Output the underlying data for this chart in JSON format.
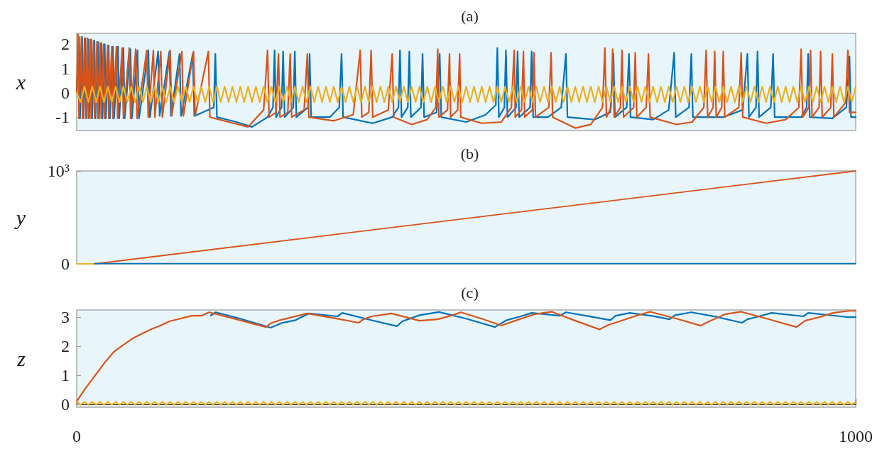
{
  "chart_data": [
    {
      "type": "line",
      "title": "(a)",
      "ylabel": "x",
      "xlim": [
        0,
        1000
      ],
      "ylim": [
        -1.55,
        2.45
      ],
      "yticks": [
        -1,
        0,
        1,
        2
      ],
      "tick_labels": "y",
      "marker": "none",
      "series": [
        {
          "color": "#0072bd",
          "x": [
            0,
            3,
            4.3,
            7,
            8.4,
            11,
            12.3,
            14.7,
            16,
            18.5,
            19.8,
            22.8,
            24.2,
            27.3,
            28.7,
            31.5,
            33,
            36,
            37.5,
            41,
            42.6,
            46.5,
            48,
            53,
            54.6,
            60,
            61.6,
            69,
            70.8,
            78,
            80,
            92,
            94,
            104.5,
            106.5,
            119,
            121,
            132,
            134,
            149,
            151,
            176,
            178,
            180,
            205,
            225,
            245,
            252,
            254,
            256,
            263,
            265,
            267,
            278,
            280,
            282,
            297,
            299,
            301,
            325,
            337,
            340,
            342,
            380,
            405,
            413,
            415,
            417,
            425,
            427,
            429,
            442,
            444,
            446,
            462,
            466,
            468,
            500,
            525,
            538,
            540,
            542,
            549,
            551,
            553,
            564,
            566,
            568,
            582,
            584,
            586,
            605,
            622,
            628,
            630,
            665,
            685,
            689,
            691,
            706,
            709,
            711,
            740,
            760,
            767,
            769,
            786,
            789,
            791,
            830,
            855,
            861,
            863,
            872,
            874,
            876,
            891,
            894,
            896,
            930,
            937,
            939,
            941,
            970,
            988,
            992,
            994,
            1000
          ],
          "values": [
            0,
            2.3,
            -1.05,
            2.3,
            -1.05,
            2.25,
            -1.05,
            2.2,
            -1.05,
            2.2,
            -1.05,
            2.15,
            -1.05,
            2.1,
            -1.05,
            2.05,
            -1.05,
            2.0,
            -1.05,
            1.95,
            -1.05,
            1.9,
            -1.05,
            1.9,
            -1.05,
            1.85,
            -1.05,
            1.8,
            -1.05,
            1.75,
            -1.05,
            1.75,
            -1.0,
            1.7,
            -0.95,
            1.7,
            -0.95,
            1.6,
            -0.95,
            1.6,
            -0.95,
            -0.6,
            1.6,
            -1.0,
            -1.2,
            -1.4,
            -1.0,
            -0.6,
            1.75,
            -1.0,
            -0.6,
            1.7,
            -1.0,
            -0.6,
            1.7,
            -1.0,
            -0.6,
            1.6,
            -1.0,
            -1.0,
            -0.6,
            1.6,
            -1.0,
            -1.25,
            -1.0,
            -0.6,
            1.75,
            -1.0,
            -0.6,
            1.7,
            -1.0,
            -0.6,
            1.6,
            -1.0,
            -0.8,
            1.6,
            -1.0,
            -1.2,
            -0.9,
            -0.5,
            1.85,
            -1.0,
            -0.6,
            1.75,
            -1.0,
            -0.6,
            1.7,
            -1.0,
            -0.6,
            1.7,
            -1.0,
            -1.0,
            -0.6,
            1.6,
            -1.0,
            -1.1,
            -0.8,
            1.6,
            -1.0,
            -0.6,
            1.6,
            -1.0,
            -1.1,
            -0.7,
            1.65,
            -1.0,
            -0.6,
            1.6,
            -1.0,
            -1.0,
            -0.7,
            1.6,
            -1.0,
            -0.6,
            1.7,
            -1.0,
            -0.6,
            1.6,
            -1.0,
            -1.0,
            -0.6,
            1.6,
            -1.0,
            -1.05,
            -0.6,
            1.5,
            -1.0,
            -1.0
          ]
        },
        {
          "color": "#d95319",
          "x": [
            0,
            1.8,
            3,
            6.1,
            7.5,
            10.1,
            11.5,
            13.7,
            15,
            17.3,
            18.6,
            21.6,
            23,
            26,
            27.4,
            30,
            31.5,
            34.3,
            35.8,
            39.7,
            41.2,
            45,
            46.6,
            51,
            52.6,
            58.4,
            60,
            67.5,
            69.2,
            75.7,
            77.5,
            90,
            91.8,
            98.5,
            100.3,
            108,
            110,
            120,
            122,
            135,
            137,
            150,
            152,
            169,
            171,
            195,
            220,
            240,
            245,
            247,
            256,
            259,
            261,
            271,
            274,
            276,
            292,
            296,
            298,
            330,
            355,
            364,
            366,
            375,
            378,
            380,
            400,
            405,
            407,
            430,
            450,
            461,
            463.5,
            465,
            476,
            478.6,
            480,
            489,
            491.6,
            493,
            520,
            545,
            558,
            561.6,
            563,
            571,
            573.5,
            575,
            585,
            587,
            589,
            606,
            609,
            611,
            640,
            660,
            675,
            678,
            680,
            686,
            688,
            690,
            698,
            700,
            702,
            715,
            717,
            719,
            731,
            734,
            736,
            770,
            790,
            805,
            808,
            810,
            817,
            819,
            821,
            828,
            830,
            832,
            850,
            853,
            855,
            885,
            910,
            927,
            930,
            932,
            940,
            942,
            944,
            953,
            955,
            957,
            968,
            970,
            972,
            987,
            990,
            992,
            1000
          ],
          "values": [
            0,
            2.4,
            -1.05,
            2.3,
            -1.05,
            2.25,
            -1.05,
            2.25,
            -1.05,
            2.2,
            -1.05,
            2.15,
            -1.05,
            2.1,
            -1.05,
            2.05,
            -1.05,
            2.0,
            -1.05,
            1.95,
            -1.05,
            1.9,
            -1.05,
            1.9,
            -1.05,
            1.85,
            -1.05,
            1.85,
            -1.05,
            1.8,
            -1.05,
            1.75,
            -1.0,
            1.75,
            -1.0,
            1.7,
            -1.0,
            1.75,
            -0.95,
            1.7,
            -0.95,
            1.7,
            -0.95,
            1.7,
            -1.0,
            -1.2,
            -1.4,
            -0.7,
            1.75,
            -1.0,
            -0.8,
            1.6,
            -1.0,
            -0.8,
            1.6,
            -1.0,
            -0.7,
            1.6,
            -1.0,
            -1.15,
            -0.9,
            1.75,
            -1.0,
            -0.8,
            1.75,
            -1.0,
            -0.7,
            1.6,
            -1.0,
            -1.3,
            -1.1,
            -0.6,
            1.8,
            -1.0,
            -0.7,
            1.6,
            -1.0,
            -0.7,
            1.6,
            -1.0,
            -1.25,
            -1.2,
            -0.6,
            1.75,
            -1.0,
            -0.7,
            1.7,
            -1.0,
            -0.7,
            1.65,
            -1.0,
            -0.6,
            1.65,
            -1.0,
            -1.45,
            -1.3,
            -0.6,
            1.85,
            -1.0,
            -0.6,
            1.8,
            -1.0,
            -0.6,
            1.75,
            -1.0,
            -0.6,
            1.65,
            -1.0,
            -0.6,
            1.6,
            -1.0,
            -1.3,
            -1.2,
            -0.6,
            1.75,
            -1.0,
            -0.6,
            1.7,
            -1.0,
            -0.6,
            1.7,
            -1.0,
            -0.6,
            1.65,
            -1.0,
            -1.25,
            -1.1,
            -0.6,
            1.8,
            -1.0,
            -0.6,
            1.75,
            -1.0,
            -0.6,
            1.7,
            -1.0,
            -0.6,
            1.6,
            -1.0,
            -0.4,
            1.75,
            -0.8,
            -0.8
          ]
        },
        {
          "color": "#edb120",
          "x": [
            0,
            5,
            10,
            15,
            20,
            25,
            30,
            35,
            40,
            45,
            50,
            55,
            60,
            65,
            70,
            75,
            80,
            85,
            90,
            95,
            100,
            105,
            110,
            115,
            120,
            125,
            130,
            135,
            140,
            145,
            150,
            155,
            160,
            165,
            170,
            175,
            180,
            185,
            190,
            195,
            200,
            205,
            210,
            215,
            220,
            225,
            230,
            235,
            240,
            245,
            250,
            255,
            260,
            265,
            270,
            275,
            280,
            285,
            290,
            295,
            300,
            305,
            310,
            315,
            320,
            325,
            330,
            335,
            340,
            345,
            350,
            355,
            360,
            365,
            370,
            375,
            380,
            385,
            390,
            395,
            400,
            405,
            410,
            415,
            420,
            425,
            430,
            435,
            440,
            445,
            450,
            455,
            460,
            465,
            470,
            475,
            480,
            485,
            490,
            495,
            500,
            505,
            510,
            515,
            520,
            525,
            530,
            535,
            540,
            545,
            550,
            555,
            560,
            565,
            570,
            575,
            580,
            585,
            590,
            595,
            600,
            605,
            610,
            615,
            620,
            625,
            630,
            635,
            640,
            645,
            650,
            655,
            660,
            665,
            670,
            675,
            680,
            685,
            690,
            695,
            700,
            705,
            710,
            715,
            720,
            725,
            730,
            735,
            740,
            745,
            750,
            755,
            760,
            765,
            770,
            775,
            780,
            785,
            790,
            795,
            800,
            805,
            810,
            815,
            820,
            825,
            830,
            835,
            840,
            845,
            850,
            855,
            860,
            865,
            870,
            875,
            880,
            885,
            890,
            895,
            900,
            905,
            910,
            915,
            920,
            925,
            930,
            935,
            940,
            945,
            950,
            955,
            960,
            965,
            970,
            975,
            980,
            985,
            990,
            995,
            1000
          ],
          "values": [
            0,
            -0.38,
            0.26,
            -0.38,
            0.26,
            -0.38,
            0.26,
            -0.38,
            0.26,
            -0.38,
            0.26,
            -0.38,
            0.26,
            -0.38,
            0.26,
            -0.38,
            0.26,
            -0.38,
            0.26,
            -0.38,
            0.26,
            -0.38,
            0.26,
            -0.38,
            0.26,
            -0.38,
            0.26,
            -0.38,
            0.26,
            -0.38,
            0.26,
            -0.38,
            0.26,
            -0.38,
            0.26,
            -0.38,
            0.26,
            -0.38,
            0.26,
            -0.38,
            0.26,
            -0.38,
            0.26,
            -0.38,
            0.26,
            -0.38,
            0.26,
            -0.38,
            0.26,
            -0.38,
            0.26,
            -0.38,
            0.26,
            -0.38,
            0.26,
            -0.38,
            0.26,
            -0.38,
            0.26,
            -0.38,
            0.26,
            -0.38,
            0.26,
            -0.38,
            0.26,
            -0.38,
            0.26,
            -0.38,
            0.26,
            -0.38,
            0.26,
            -0.38,
            0.26,
            -0.38,
            0.26,
            -0.38,
            0.26,
            -0.38,
            0.26,
            -0.38,
            0.26,
            -0.38,
            0.26,
            -0.38,
            0.26,
            -0.38,
            0.26,
            -0.38,
            0.26,
            -0.38,
            0.26,
            -0.38,
            0.26,
            -0.38,
            0.26,
            -0.38,
            0.26,
            -0.38,
            0.26,
            -0.38,
            0.26,
            -0.38,
            0.26,
            -0.38,
            0.26,
            -0.38,
            0.26,
            -0.38,
            0.26,
            -0.38,
            0.26,
            -0.38,
            0.26,
            -0.38,
            0.26,
            -0.38,
            0.26,
            -0.38,
            0.26,
            -0.38,
            0.26,
            -0.38,
            0.26,
            -0.38,
            0.26,
            -0.38,
            0.26,
            -0.38,
            0.26,
            -0.38,
            0.26,
            -0.38,
            0.26,
            -0.38,
            0.26,
            -0.38,
            0.26,
            -0.38,
            0.26,
            -0.38,
            0.26,
            -0.38,
            0.26,
            -0.38,
            0.26,
            -0.38,
            0.26,
            -0.38,
            0.26,
            -0.38,
            0.26,
            -0.38,
            0.26,
            -0.38,
            0.26,
            -0.38,
            0.26,
            -0.38,
            0.26,
            -0.38,
            0.26,
            -0.38,
            0.26,
            -0.38,
            0.26,
            -0.38,
            0.26,
            -0.38,
            0.26,
            -0.38,
            0.26,
            -0.38,
            0.26,
            -0.38,
            0.26,
            -0.38,
            0.26,
            -0.38,
            0.26,
            -0.38,
            0.26,
            -0.38,
            0.26,
            -0.38,
            0.26,
            -0.38,
            0.26,
            -0.38,
            0.26,
            -0.38,
            0.26,
            -0.38,
            0.26,
            -0.38,
            0.26,
            -0.38,
            0.26,
            -0.38,
            0.26,
            -0.38,
            0.26
          ]
        }
      ]
    },
    {
      "type": "line",
      "title": "(b)",
      "ylabel": "y",
      "xlim": [
        0,
        1000
      ],
      "ylim": [
        0,
        1000
      ],
      "yticks": [
        0,
        {
          "value": 1000,
          "label": "10³"
        }
      ],
      "tick_labels": "y",
      "marker": "none",
      "series": [
        {
          "color": "#edb120",
          "x": [
            0,
            23
          ],
          "values": [
            0,
            0
          ]
        },
        {
          "color": "#d95319",
          "x": [
            23,
            1000
          ],
          "values": [
            0,
            1000
          ]
        },
        {
          "color": "#0072bd",
          "x": [
            23,
            1000
          ],
          "values": [
            3,
            3
          ]
        }
      ]
    },
    {
      "type": "line",
      "title": "(c)",
      "ylabel": "z",
      "xlim": [
        0,
        1000
      ],
      "ylim": [
        -0.1,
        3.25
      ],
      "yticks": [
        0,
        1,
        2,
        3
      ],
      "xticks": [
        0,
        1000
      ],
      "marker": "none",
      "series": [
        {
          "color": "#0072bd",
          "x": [
            172,
            178.5,
            210,
            249,
            263,
            281,
            298,
            335,
            341,
            375,
            411,
            418,
            440,
            465,
            500,
            537,
            552,
            570,
            584,
            620,
            628,
            660,
            685,
            692,
            710,
            740,
            761,
            768,
            789,
            820,
            854,
            861,
            876,
            892,
            933,
            939,
            970,
            991,
            1000
          ],
          "values": [
            3.06,
            3.17,
            2.95,
            2.64,
            2.8,
            2.9,
            3.13,
            3.03,
            3.15,
            2.92,
            2.69,
            2.86,
            3.07,
            3.18,
            2.95,
            2.66,
            2.9,
            3.03,
            3.15,
            3.05,
            3.17,
            3.02,
            2.9,
            3.05,
            3.15,
            3.04,
            2.93,
            3.07,
            3.17,
            3.02,
            2.81,
            2.93,
            3.03,
            3.15,
            3.03,
            3.15,
            3.06,
            3.0,
            3.0
          ]
        },
        {
          "color": "#d95319",
          "x": [
            0,
            10,
            21.6,
            35,
            47,
            60,
            72,
            85,
            97,
            108,
            119,
            133,
            148,
            160,
            170,
            205,
            243,
            249,
            261,
            276,
            296,
            330,
            362,
            368,
            379,
            404,
            440,
            463.5,
            480,
            493,
            520,
            545,
            563,
            574,
            587,
            610,
            640,
            671,
            682,
            697,
            718,
            736,
            770,
            801,
            812,
            832,
            853,
            890,
            924,
            935,
            953,
            971,
            991,
            1000
          ],
          "values": [
            0.1,
            0.5,
            0.92,
            1.4,
            1.79,
            2.05,
            2.27,
            2.45,
            2.6,
            2.72,
            2.86,
            2.95,
            3.05,
            3.05,
            3.17,
            2.93,
            2.66,
            2.79,
            2.9,
            3.0,
            3.13,
            2.97,
            2.81,
            2.93,
            3.03,
            3.13,
            2.88,
            2.93,
            3.05,
            3.17,
            2.95,
            2.71,
            2.88,
            2.98,
            3.1,
            3.19,
            2.88,
            2.58,
            2.73,
            2.86,
            3.05,
            3.19,
            2.95,
            2.71,
            2.86,
            3.1,
            3.19,
            2.92,
            2.66,
            2.88,
            3.0,
            3.15,
            3.22,
            3.22
          ]
        },
        {
          "color": "#edb120",
          "x": [
            0,
            5,
            10,
            15,
            20,
            25,
            30,
            35,
            40,
            45,
            50,
            55,
            60,
            65,
            70,
            75,
            80,
            85,
            90,
            95,
            100,
            105,
            110,
            115,
            120,
            125,
            130,
            135,
            140,
            145,
            150,
            155,
            160,
            165,
            170,
            175,
            180,
            185,
            190,
            195,
            200,
            205,
            210,
            215,
            220,
            225,
            230,
            235,
            240,
            245,
            250,
            255,
            260,
            265,
            270,
            275,
            280,
            285,
            290,
            295,
            300,
            305,
            310,
            315,
            320,
            325,
            330,
            335,
            340,
            345,
            350,
            355,
            360,
            365,
            370,
            375,
            380,
            385,
            390,
            395,
            400,
            405,
            410,
            415,
            420,
            425,
            430,
            435,
            440,
            445,
            450,
            455,
            460,
            465,
            470,
            475,
            480,
            485,
            490,
            495,
            500,
            505,
            510,
            515,
            520,
            525,
            530,
            535,
            540,
            545,
            550,
            555,
            560,
            565,
            570,
            575,
            580,
            585,
            590,
            595,
            600,
            605,
            610,
            615,
            620,
            625,
            630,
            635,
            640,
            645,
            650,
            655,
            660,
            665,
            670,
            675,
            680,
            685,
            690,
            695,
            700,
            705,
            710,
            715,
            720,
            725,
            730,
            735,
            740,
            745,
            750,
            755,
            760,
            765,
            770,
            775,
            780,
            785,
            790,
            795,
            800,
            805,
            810,
            815,
            820,
            825,
            830,
            835,
            840,
            845,
            850,
            855,
            860,
            865,
            870,
            875,
            880,
            885,
            890,
            895,
            900,
            905,
            910,
            915,
            920,
            925,
            930,
            935,
            940,
            945,
            950,
            955,
            960,
            965,
            970,
            975,
            980,
            985,
            990,
            995,
            1000
          ],
          "values": [
            0.1,
            -0.02,
            0.08,
            -0.02,
            0.08,
            -0.02,
            0.08,
            -0.02,
            0.08,
            -0.02,
            0.08,
            -0.02,
            0.08,
            -0.02,
            0.08,
            -0.02,
            0.08,
            -0.02,
            0.08,
            -0.02,
            0.08,
            -0.02,
            0.08,
            -0.02,
            0.08,
            -0.02,
            0.08,
            -0.02,
            0.08,
            -0.02,
            0.08,
            -0.02,
            0.08,
            -0.02,
            0.08,
            -0.02,
            0.08,
            -0.02,
            0.08,
            -0.02,
            0.08,
            -0.02,
            0.08,
            -0.02,
            0.08,
            -0.02,
            0.08,
            -0.02,
            0.08,
            -0.02,
            0.08,
            -0.02,
            0.08,
            -0.02,
            0.08,
            -0.02,
            0.08,
            -0.02,
            0.08,
            -0.02,
            0.08,
            -0.02,
            0.08,
            -0.02,
            0.08,
            -0.02,
            0.08,
            -0.02,
            0.08,
            -0.02,
            0.08,
            -0.02,
            0.08,
            -0.02,
            0.08,
            -0.02,
            0.08,
            -0.02,
            0.08,
            -0.02,
            0.08,
            -0.02,
            0.08,
            -0.02,
            0.08,
            -0.02,
            0.08,
            -0.02,
            0.08,
            -0.02,
            0.08,
            -0.02,
            0.08,
            -0.02,
            0.08,
            -0.02,
            0.08,
            -0.02,
            0.08,
            -0.02,
            0.08,
            -0.02,
            0.08,
            -0.02,
            0.08,
            -0.02,
            0.08,
            -0.02,
            0.08,
            -0.02,
            0.08,
            -0.02,
            0.08,
            -0.02,
            0.08,
            -0.02,
            0.08,
            -0.02,
            0.08,
            -0.02,
            0.08,
            -0.02,
            0.08,
            -0.02,
            0.08,
            -0.02,
            0.08,
            -0.02,
            0.08,
            -0.02,
            0.08,
            -0.02,
            0.08,
            -0.02,
            0.08,
            -0.02,
            0.08,
            -0.02,
            0.08,
            -0.02,
            0.08,
            -0.02,
            0.08,
            -0.02,
            0.08,
            -0.02,
            0.08,
            -0.02,
            0.08,
            -0.02,
            0.08,
            -0.02,
            0.08,
            -0.02,
            0.08,
            -0.02,
            0.08,
            -0.02,
            0.08,
            -0.02,
            0.08,
            -0.02,
            0.08,
            -0.02,
            0.08,
            -0.02,
            0.08,
            -0.02,
            0.08,
            -0.02,
            0.08,
            -0.02,
            0.08,
            -0.02,
            0.08,
            -0.02,
            0.08,
            -0.02,
            0.08,
            -0.02,
            0.08,
            -0.02,
            0.08,
            -0.02,
            0.08,
            -0.02,
            0.08,
            -0.02,
            0.08,
            -0.02,
            0.08,
            -0.02,
            0.08,
            -0.02,
            0.08,
            -0.02,
            0.08,
            -0.02,
            0.08,
            -0.02,
            0.08
          ]
        }
      ]
    }
  ]
}
